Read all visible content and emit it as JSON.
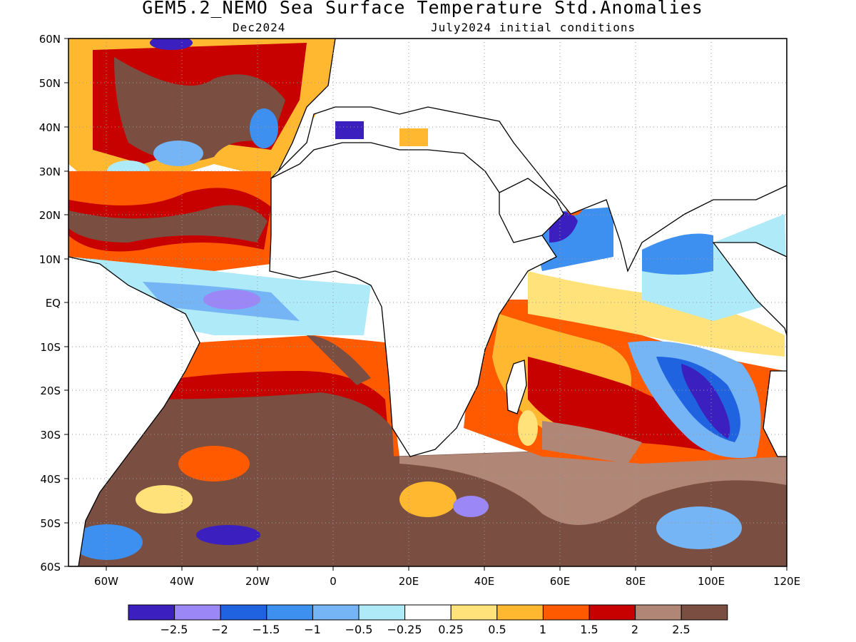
{
  "title": "GEM5.2_NEMO Sea Surface Temperature Std.Anomalies",
  "subtitle_date": "Dec2024",
  "subtitle_init": "July2024 initial conditions",
  "lat_ticks": [
    "60N",
    "50N",
    "40N",
    "30N",
    "20N",
    "10N",
    "EQ",
    "10S",
    "20S",
    "30S",
    "40S",
    "50S",
    "60S"
  ],
  "lon_ticks": [
    "60W",
    "40W",
    "20W",
    "0",
    "20E",
    "40E",
    "60E",
    "80E",
    "100E",
    "120E"
  ],
  "map_extent": {
    "lon": [
      -70,
      120
    ],
    "lat": [
      -60,
      60
    ]
  },
  "colorbar": {
    "colors": [
      "#3b1fbf",
      "#9b87f5",
      "#1f63e0",
      "#3d8ff0",
      "#75b4f5",
      "#aeeaf7",
      "#ffffff",
      "#ffe27a",
      "#ffb830",
      "#ff5a00",
      "#c70000",
      "#b08676",
      "#7a4f42"
    ],
    "labels": [
      "−2.5",
      "−2",
      "−1.5",
      "−1",
      "−0.5",
      "−0.25",
      "0.25",
      "0.5",
      "1",
      "1.5",
      "2",
      "2.5"
    ]
  }
}
